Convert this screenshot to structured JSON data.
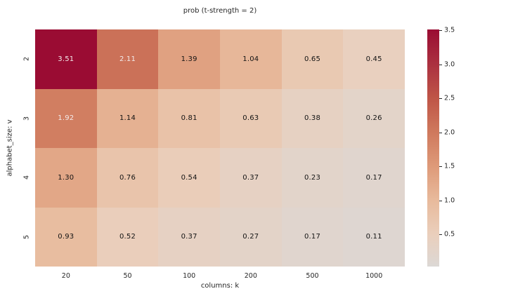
{
  "figure": {
    "background": "#ffffff",
    "text_color": "#262626"
  },
  "chart_data": {
    "type": "heatmap",
    "title": "prob (t-strength = 2)",
    "xlabel": "columns: k",
    "ylabel": "alphabet_size: v",
    "x_categories": [
      "20",
      "50",
      "100",
      "200",
      "500",
      "1000"
    ],
    "y_categories": [
      "2",
      "3",
      "4",
      "5"
    ],
    "values": [
      [
        3.51,
        2.11,
        1.39,
        1.04,
        0.65,
        0.45
      ],
      [
        1.92,
        1.14,
        0.81,
        0.63,
        0.38,
        0.26
      ],
      [
        1.3,
        0.76,
        0.54,
        0.37,
        0.23,
        0.17
      ],
      [
        0.93,
        0.52,
        0.37,
        0.27,
        0.17,
        0.11
      ]
    ],
    "annotation_decimals": 2,
    "grid": false,
    "legend_position": "colorbar-right",
    "colorbar": {
      "ticks": [
        3.5,
        3.0,
        2.5,
        2.0,
        1.5,
        1.0,
        0.5
      ],
      "tick_decimals": 1,
      "vmin_edge": 0.03,
      "vmax_edge": 3.51
    },
    "colormap_stops": [
      [
        0.03,
        "#dcd8d5"
      ],
      [
        0.5,
        "#eacfbc"
      ],
      [
        1.0,
        "#e8ba9c"
      ],
      [
        1.5,
        "#de9a79"
      ],
      [
        2.0,
        "#cf795d"
      ],
      [
        2.5,
        "#bf5547"
      ],
      [
        3.0,
        "#ab3140"
      ],
      [
        3.51,
        "#9a0c33"
      ]
    ],
    "annot_light_threshold": 1.6,
    "annot_colors": {
      "light": "#f3eaea",
      "dark": "#131313"
    }
  }
}
